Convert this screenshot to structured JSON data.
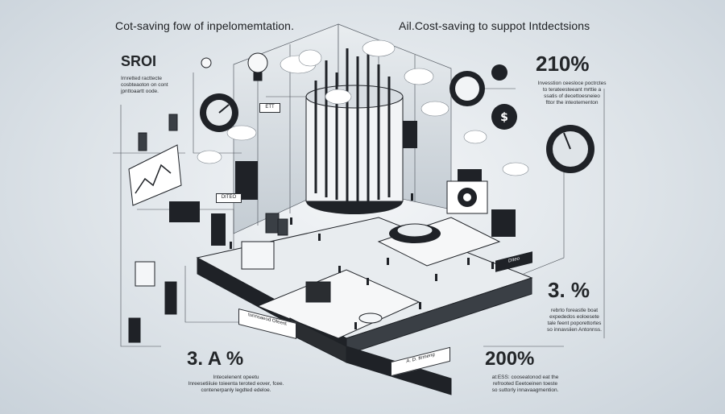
{
  "headings": {
    "left": "Cot-saving fow of inpelomemtation.",
    "right": "Ail.Cost-saving to suppot Intdectsions"
  },
  "stats": {
    "top_left": {
      "value": "SROI",
      "text": [
        "Irnretted racttecte",
        "cosbteaoton on cont",
        "jpnttoaartt oode."
      ]
    },
    "top_right": {
      "value": "210%",
      "text": [
        "Invesstion ceesloce poctrctes",
        "to terateesteeant mrttie a",
        "ssatis of decettoesneieo",
        "fttor the inteotementon"
      ]
    },
    "mid_right": {
      "value": "3. %",
      "text": [
        "rebrto foreastle boat",
        "expededos eoloesete",
        "tale feent poporettortes",
        "so innavsiien Antonnss."
      ]
    },
    "bottom_left": {
      "value": "3. A %",
      "text": [
        "Intecelenent opeetu",
        "Inreesetiiiuie toieenta teroted eover, fcee.",
        "contenerpanly legdted edeloe."
      ]
    },
    "bottom_right": {
      "value": "200%",
      "text": [
        "at:ESS: cooseatonod eat the",
        "refrooted Eeetoeinen toeste",
        "so suttorly innavaagmention."
      ]
    }
  },
  "scene_labels": {
    "board_left": "tonnsaeod Ofeent",
    "board_bottom": "A. D. ttrmeng",
    "board_right": "Diteo",
    "small_a": "DITEO",
    "small_b": "ETT"
  },
  "colors": {
    "ink": "#1f2227",
    "paper": "#ffffff",
    "bg": "#dde3e8",
    "grey": "#8a929a"
  },
  "icons": [
    "lightbulb-icon",
    "dollar-coin-icon",
    "gauge-icon",
    "gear-icon",
    "cloud-icon",
    "chart-icon",
    "coin-stack-icon"
  ]
}
